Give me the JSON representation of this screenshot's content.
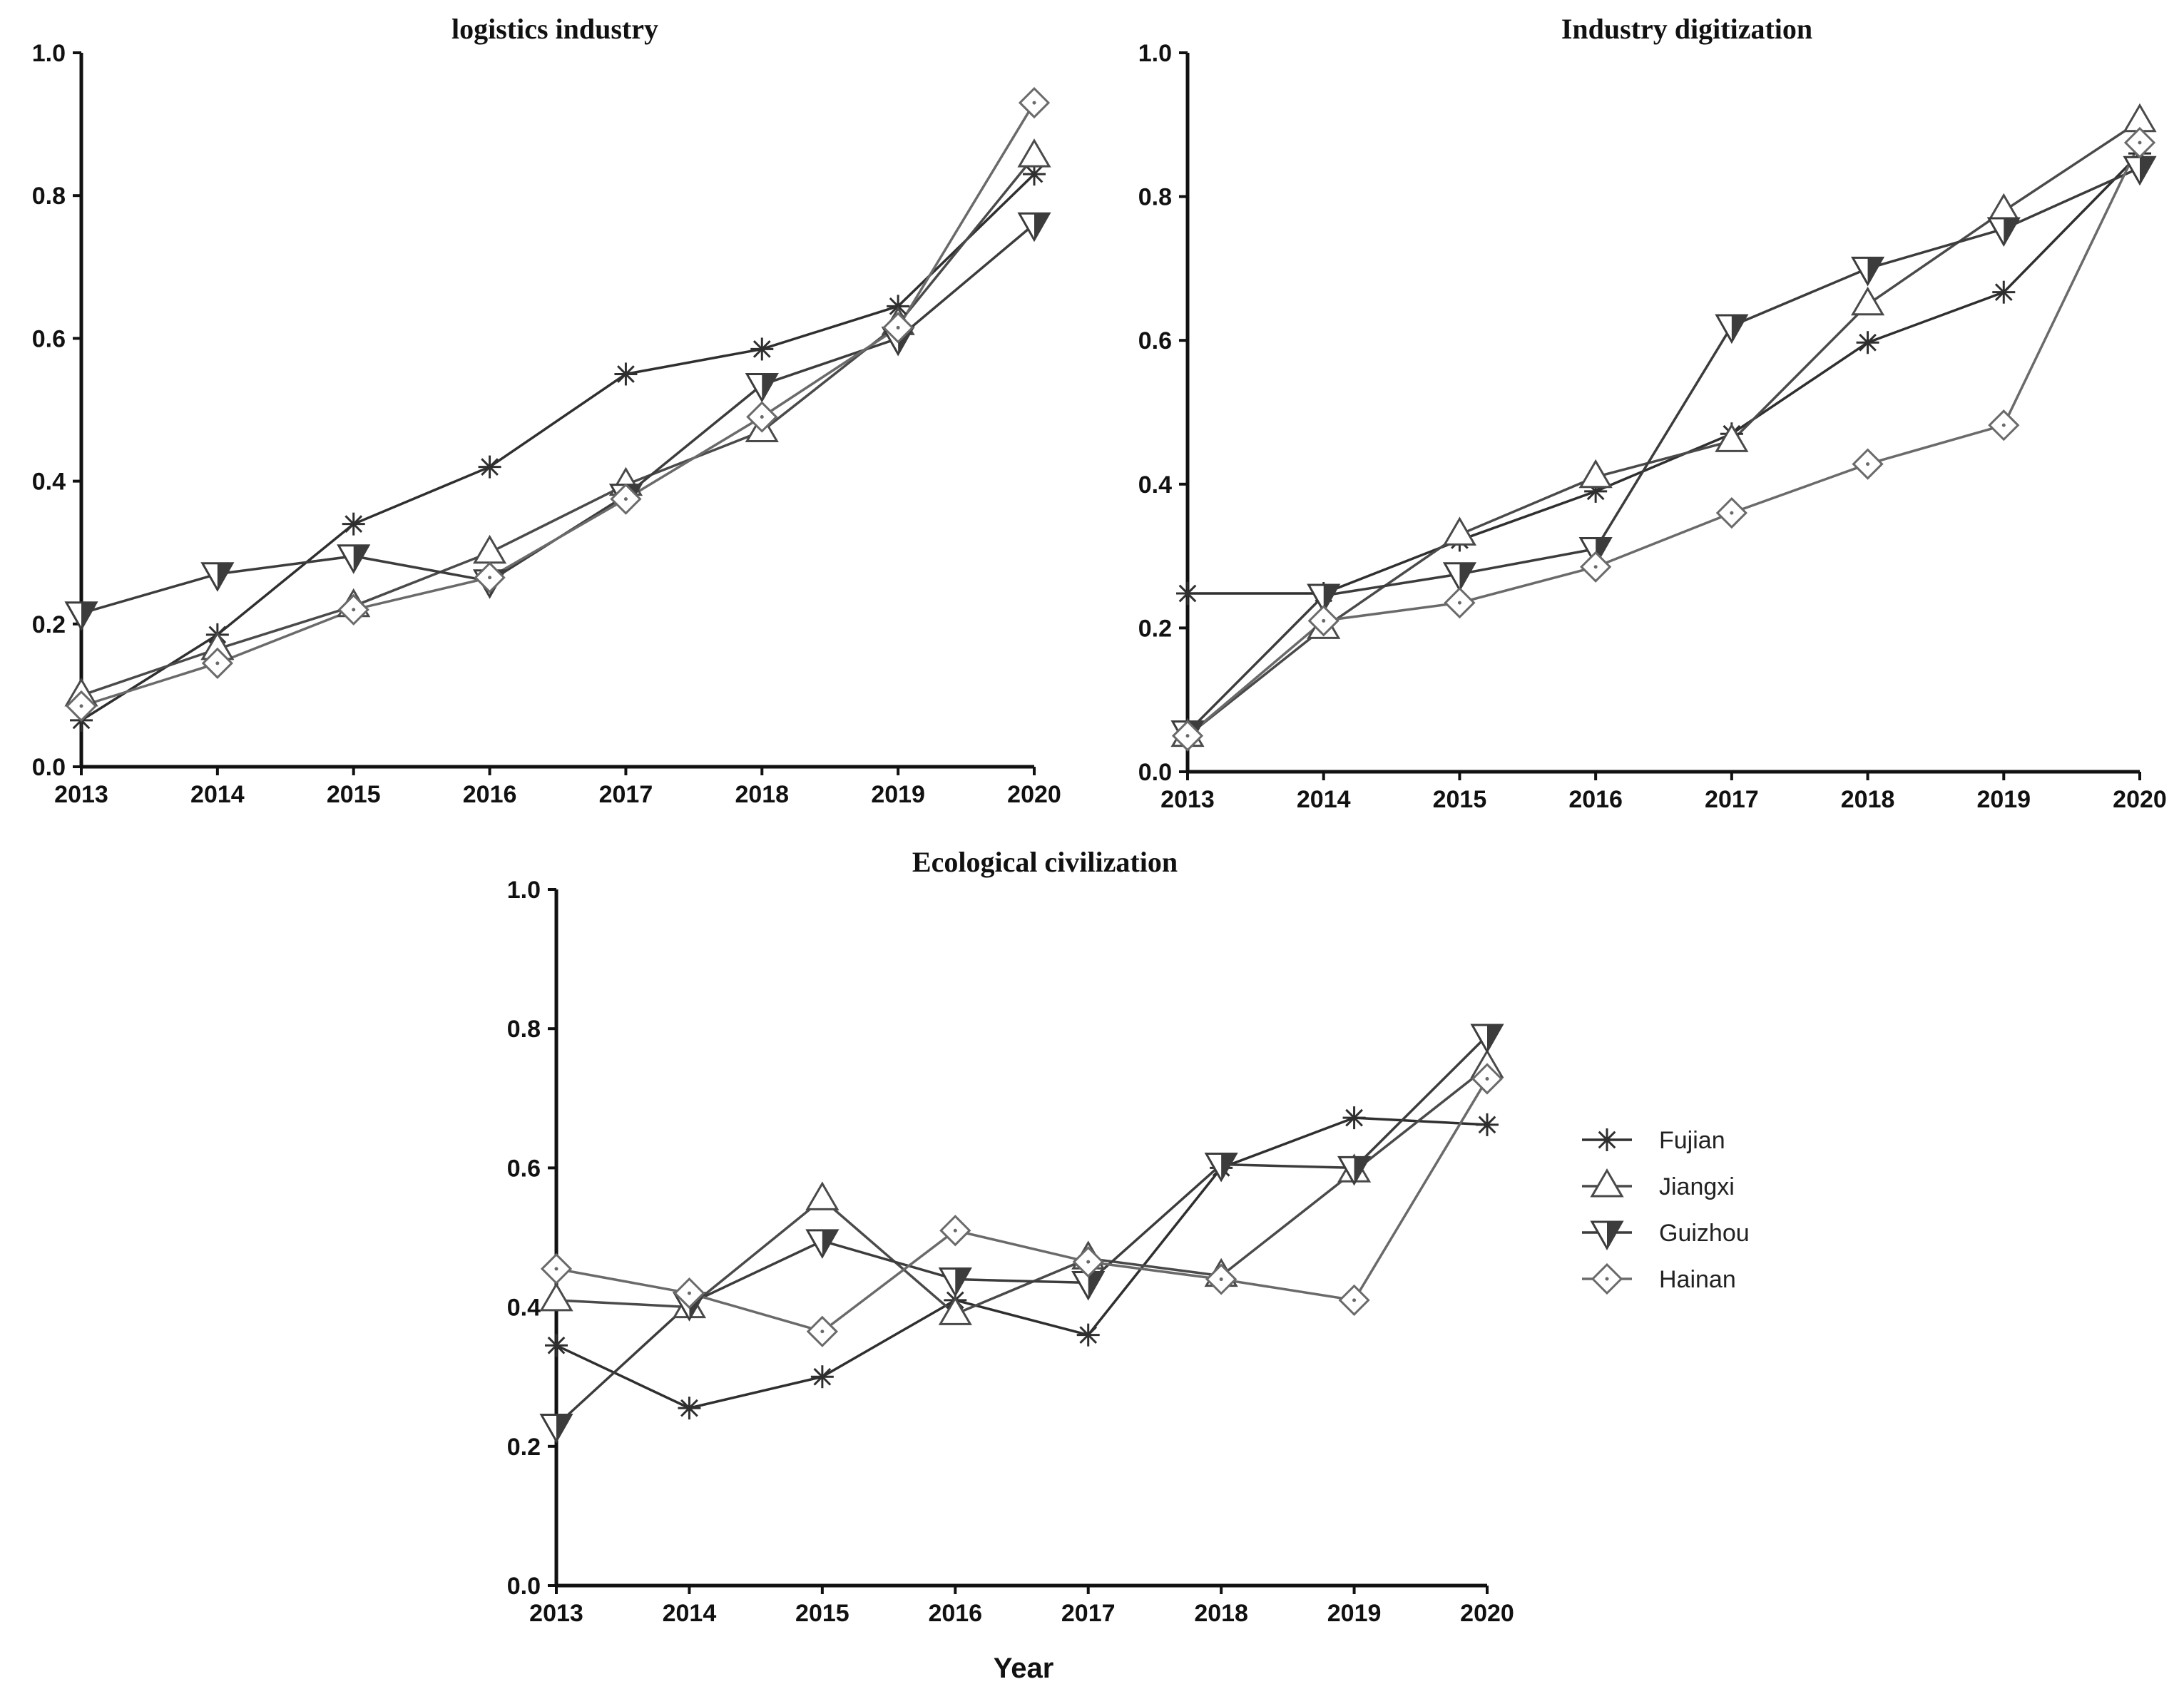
{
  "chart_data": [
    {
      "type": "line",
      "title": "logistics industry",
      "x": [
        2013,
        2014,
        2015,
        2016,
        2017,
        2018,
        2019,
        2020
      ],
      "ylim": [
        0,
        1.0
      ],
      "yticks": [
        "0.0",
        "0.2",
        "0.4",
        "0.6",
        "0.8",
        "1.0"
      ],
      "xlabel": "",
      "ylabel": "",
      "series": [
        {
          "name": "Fujian",
          "values": [
            0.065,
            0.185,
            0.34,
            0.42,
            0.55,
            0.585,
            0.645,
            0.83
          ]
        },
        {
          "name": "Jiangxi",
          "values": [
            0.1,
            0.165,
            0.225,
            0.3,
            0.395,
            0.47,
            0.62,
            0.855
          ]
        },
        {
          "name": "Guizhou",
          "values": [
            0.215,
            0.27,
            0.295,
            0.26,
            0.38,
            0.535,
            0.6,
            0.76
          ]
        },
        {
          "name": "Hainan",
          "values": [
            0.085,
            0.145,
            0.22,
            0.265,
            0.375,
            0.49,
            0.615,
            0.93
          ]
        }
      ]
    },
    {
      "type": "line",
      "title": "Industry digitization",
      "x": [
        2013,
        2014,
        2015,
        2016,
        2017,
        2018,
        2019,
        2020
      ],
      "ylim": [
        0,
        1.0
      ],
      "yticks": [
        "0.0",
        "0.2",
        "0.4",
        "0.6",
        "0.8",
        "1.0"
      ],
      "xlabel": "",
      "ylabel": "",
      "series": [
        {
          "name": "Fujian",
          "values": [
            0.248,
            0.248,
            0.322,
            0.39,
            0.47,
            0.597,
            0.667,
            0.86
          ]
        },
        {
          "name": "Jiangxi",
          "values": [
            0.05,
            0.2,
            0.33,
            0.41,
            0.46,
            0.65,
            0.78,
            0.905
          ]
        },
        {
          "name": "Guizhou",
          "values": [
            0.055,
            0.245,
            0.275,
            0.31,
            0.62,
            0.7,
            0.755,
            0.84
          ]
        },
        {
          "name": "Hainan",
          "values": [
            0.05,
            0.21,
            0.235,
            0.285,
            0.36,
            0.428,
            0.482,
            0.875
          ]
        }
      ]
    },
    {
      "type": "line",
      "title": "Ecological civilization",
      "x": [
        2013,
        2014,
        2015,
        2016,
        2017,
        2018,
        2019,
        2020
      ],
      "ylim": [
        0,
        1.0
      ],
      "yticks": [
        "0.0",
        "0.2",
        "0.4",
        "0.6",
        "0.8",
        "1.0"
      ],
      "xlabel": "Year",
      "ylabel": "",
      "series": [
        {
          "name": "Fujian",
          "values": [
            0.345,
            0.255,
            0.3,
            0.41,
            0.36,
            0.6,
            0.672,
            0.662
          ]
        },
        {
          "name": "Jiangxi",
          "values": [
            0.41,
            0.4,
            0.555,
            0.39,
            0.47,
            0.445,
            0.595,
            0.745
          ]
        },
        {
          "name": "Guizhou",
          "values": [
            0.23,
            0.405,
            0.495,
            0.44,
            0.435,
            0.605,
            0.6,
            0.79
          ]
        },
        {
          "name": "Hainan",
          "values": [
            0.455,
            0.42,
            0.365,
            0.51,
            0.465,
            0.44,
            0.41,
            0.728
          ]
        }
      ]
    }
  ],
  "legend": {
    "entries": [
      {
        "name": "Fujian",
        "marker": "asterisk-icon"
      },
      {
        "name": "Jiangxi",
        "marker": "triangle-up-icon"
      },
      {
        "name": "Guizhou",
        "marker": "half-filled-triangle-down-icon"
      },
      {
        "name": "Hainan",
        "marker": "diamond-icon"
      }
    ]
  },
  "colors": {
    "Fujian": "#2f2f2f",
    "Jiangxi": "#4a4a4a",
    "Guizhou": "#3c3c3c",
    "Hainan": "#6a6a6a",
    "axis": "#111111"
  }
}
